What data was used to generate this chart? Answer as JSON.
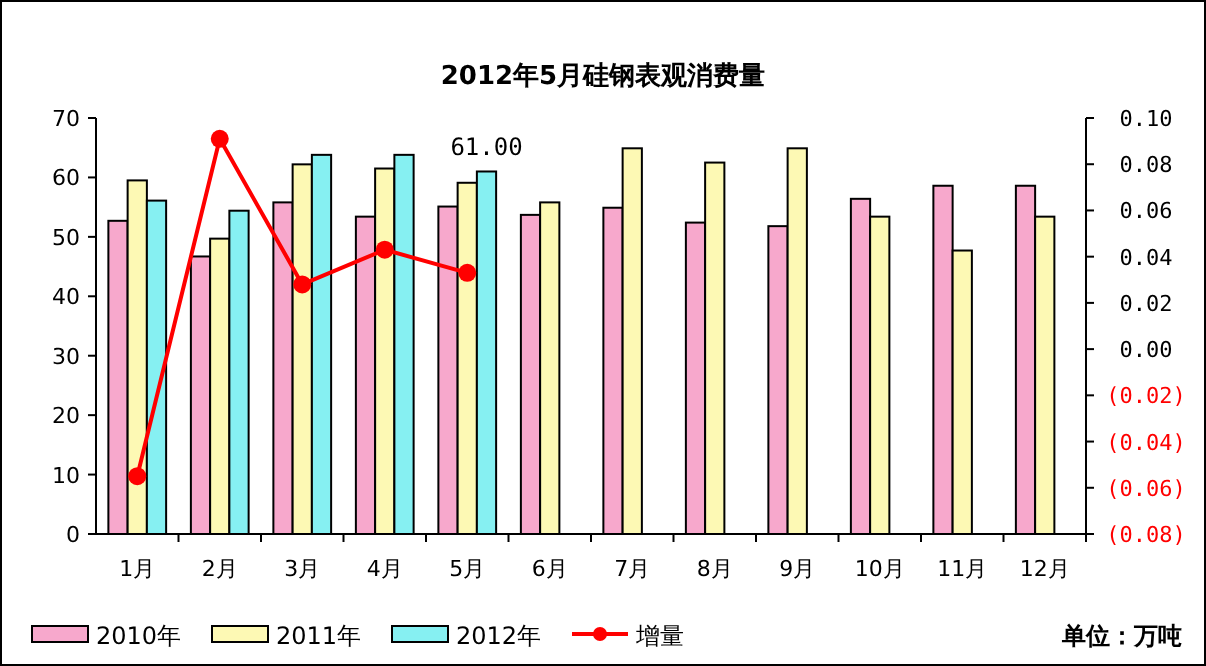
{
  "chart_data": {
    "type": "bar",
    "title": "2012年5月硅钢表观消费量",
    "categories": [
      "1月",
      "2月",
      "3月",
      "4月",
      "5月",
      "6月",
      "7月",
      "8月",
      "9月",
      "10月",
      "11月",
      "12月"
    ],
    "series": [
      {
        "name": "2010年",
        "color": "#f7a8cc",
        "values": [
          52.7,
          46.7,
          55.8,
          53.4,
          55.1,
          53.7,
          54.9,
          52.4,
          51.8,
          56.4,
          58.6,
          58.6
        ]
      },
      {
        "name": "2011年",
        "color": "#fdf9b4",
        "values": [
          59.5,
          49.7,
          62.2,
          61.5,
          59.1,
          55.8,
          64.9,
          62.5,
          64.9,
          53.4,
          47.7,
          53.4
        ]
      },
      {
        "name": "2012年",
        "color": "#86f0f2",
        "values": [
          56.1,
          54.4,
          63.8,
          63.8,
          61.0,
          null,
          null,
          null,
          null,
          null,
          null,
          null
        ],
        "value_labels": [
          null,
          null,
          null,
          null,
          "61.00",
          null,
          null,
          null,
          null,
          null,
          null,
          null
        ]
      },
      {
        "name": "增量",
        "type": "line",
        "axis": "y2",
        "color": "#ff0000",
        "marker": "circle",
        "values": [
          -0.055,
          0.091,
          0.028,
          0.043,
          0.033,
          null,
          null,
          null,
          null,
          null,
          null,
          null
        ]
      }
    ],
    "ylim": [
      0,
      70
    ],
    "yticks": [
      0,
      10,
      20,
      30,
      40,
      50,
      60,
      70
    ],
    "y2lim": [
      -0.08,
      0.1
    ],
    "y2ticks": [
      {
        "value": -0.08,
        "label": "(0.08)"
      },
      {
        "value": -0.06,
        "label": "(0.06)"
      },
      {
        "value": -0.04,
        "label": "(0.04)"
      },
      {
        "value": -0.02,
        "label": "(0.02)"
      },
      {
        "value": 0,
        "label": "0.00"
      },
      {
        "value": 0.02,
        "label": "0.02"
      },
      {
        "value": 0.04,
        "label": "0.04"
      },
      {
        "value": 0.06,
        "label": "0.06"
      },
      {
        "value": 0.08,
        "label": "0.08"
      },
      {
        "value": 0.1,
        "label": "0.10"
      }
    ],
    "grid": false,
    "legend": "bottom",
    "annotations": [
      "单位：万吨"
    ]
  }
}
